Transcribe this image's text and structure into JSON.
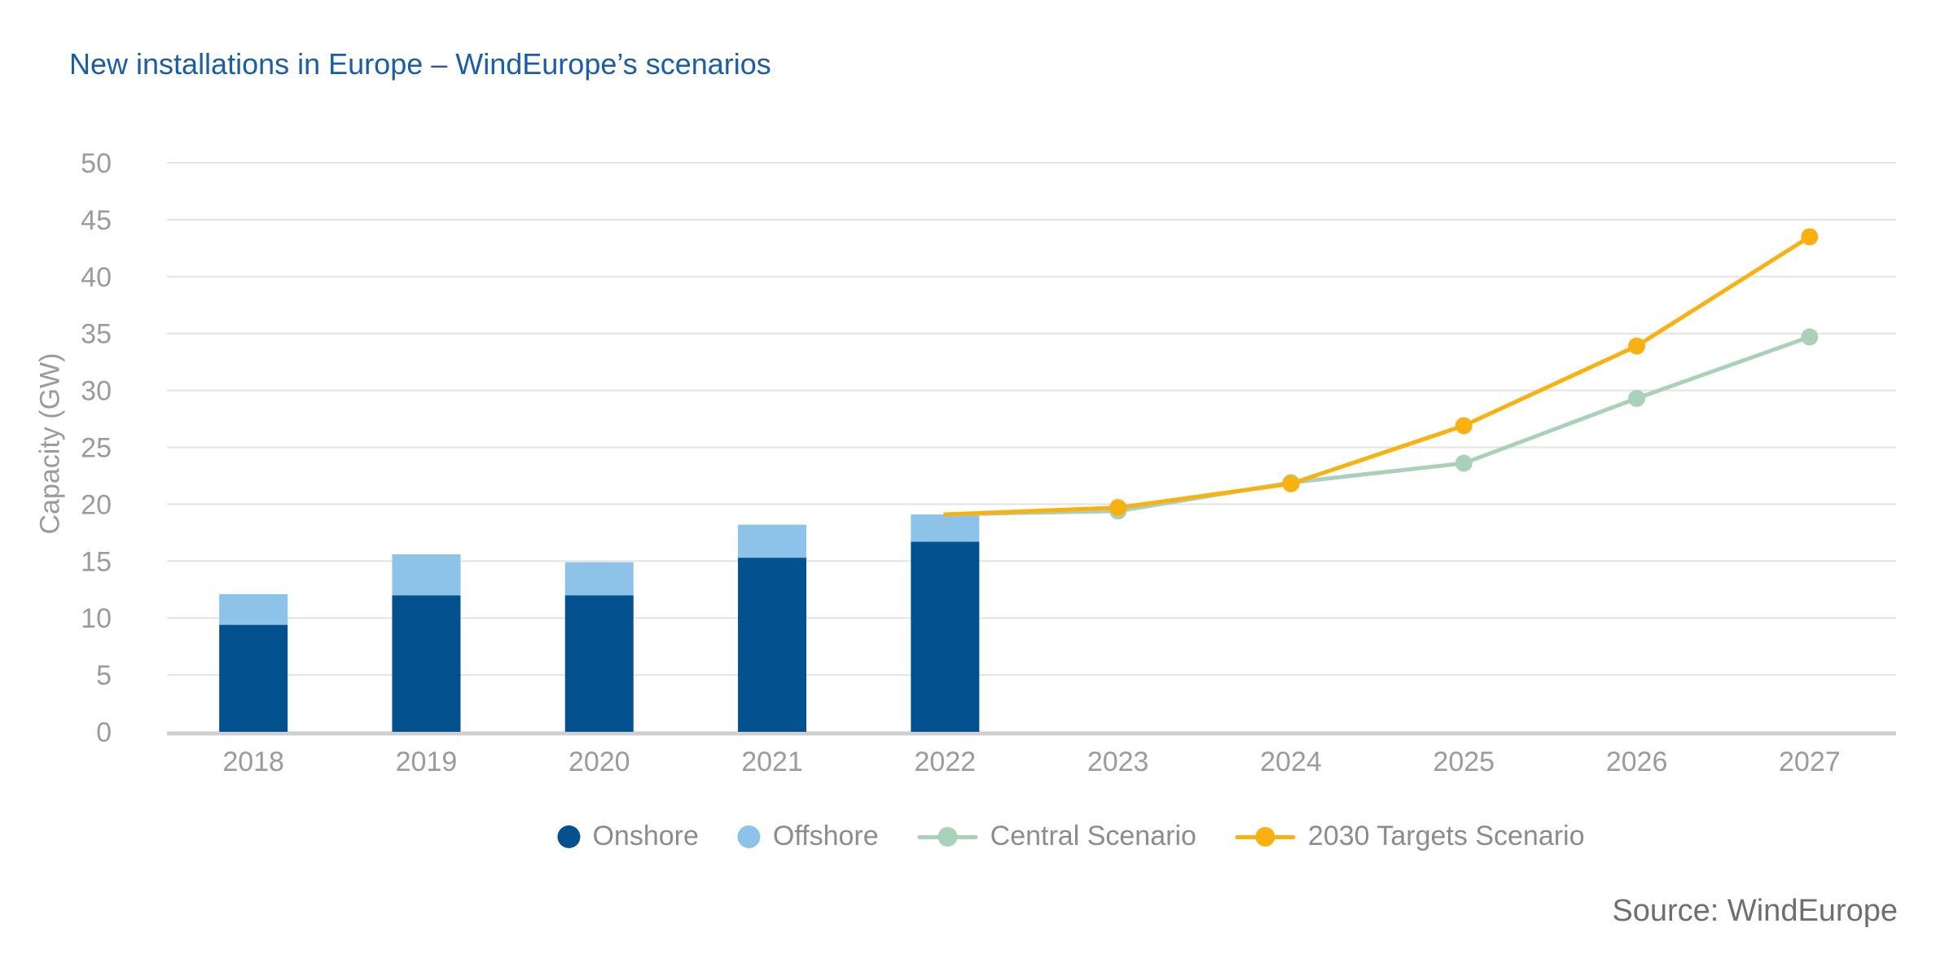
{
  "title": "New installations in Europe – WindEurope’s scenarios",
  "source": "Source: WindEurope",
  "colors": {
    "title_blue": "#1A5DA8",
    "onshore": "#03518F",
    "offshore": "#8DC2E9",
    "central": "#A9D1B8",
    "targets": "#F9B112",
    "gridline": "#E3E3E3",
    "axis_line": "#CFCFCF",
    "tick_text": "#9B9B9B",
    "legend_text": "#8C8C8E",
    "source_text": "#6E6F72"
  },
  "legend": {
    "items": [
      {
        "label": "Onshore",
        "swatch": "circle",
        "color": "#03518F"
      },
      {
        "label": "Offshore",
        "swatch": "circle",
        "color": "#8DC2E9"
      },
      {
        "label": "Central Scenario",
        "swatch": "line-marker",
        "color": "#A9D1B8"
      },
      {
        "label": "2030 Targets Scenario",
        "swatch": "line-marker",
        "color": "#F9B112"
      }
    ]
  },
  "chart_data": {
    "type": "combo (stacked bar + line)",
    "title": "New installations in Europe – WindEurope’s scenarios",
    "categories": [
      "2018",
      "2019",
      "2020",
      "2021",
      "2022",
      "2023",
      "2024",
      "2025",
      "2026",
      "2027"
    ],
    "bar_series": [
      {
        "name": "Onshore",
        "color": "#03518F",
        "values": [
          9.4,
          12.0,
          12.0,
          15.3,
          16.7,
          null,
          null,
          null,
          null,
          null
        ]
      },
      {
        "name": "Offshore",
        "color": "#8DC2E9",
        "values": [
          2.7,
          3.6,
          2.9,
          2.9,
          2.4,
          null,
          null,
          null,
          null,
          null
        ]
      }
    ],
    "bar_totals": [
      12.1,
      15.6,
      14.9,
      18.2,
      19.1,
      null,
      null,
      null,
      null,
      null
    ],
    "line_series": [
      {
        "name": "Central Scenario",
        "color": "#A9D1B8",
        "values": [
          null,
          null,
          null,
          null,
          19.1,
          19.4,
          21.9,
          23.6,
          29.3,
          34.7
        ]
      },
      {
        "name": "2030 Targets Scenario",
        "color": "#F9B112",
        "values": [
          null,
          null,
          null,
          null,
          19.1,
          19.7,
          21.8,
          26.9,
          33.9,
          43.5
        ]
      }
    ],
    "xlabel": "",
    "ylabel": "Capacity (GW)",
    "ylim": [
      0,
      50
    ],
    "yticks": [
      0,
      5,
      10,
      15,
      20,
      25,
      30,
      35,
      40,
      45,
      50
    ],
    "grid": true,
    "legend_position": "bottom",
    "marker_points": "line markers shown for 2023-2027 only"
  }
}
